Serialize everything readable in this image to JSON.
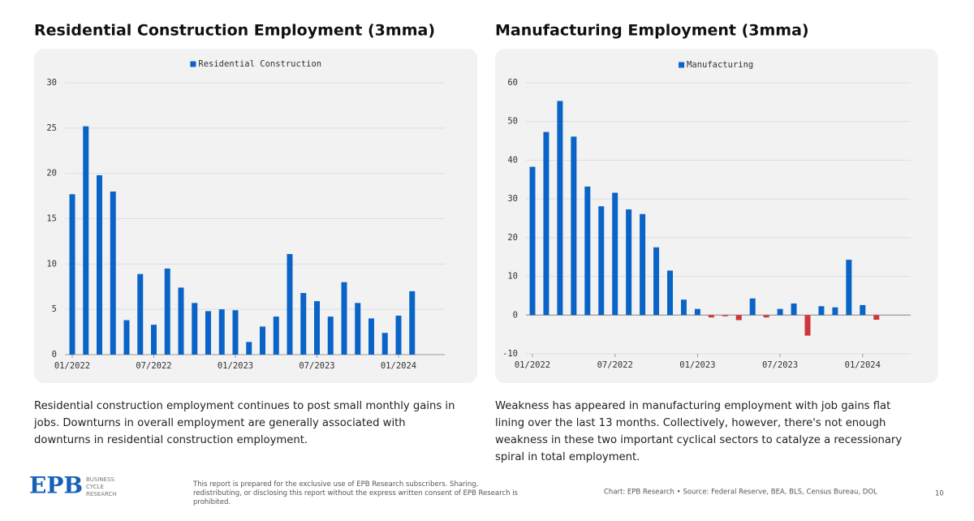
{
  "chart_data": [
    {
      "type": "bar",
      "title": "Residential Construction Employment (3mma)",
      "categories": [
        "01/2022",
        null,
        null,
        null,
        null,
        null,
        "07/2022",
        null,
        null,
        null,
        null,
        null,
        "01/2023",
        null,
        null,
        null,
        null,
        null,
        "07/2023",
        null,
        null,
        null,
        null,
        null,
        "01/2024",
        null
      ],
      "series": [
        {
          "name": "Residential Construction",
          "color": "#0a64c8",
          "values": [
            17.7,
            25.2,
            19.8,
            18.0,
            3.8,
            8.9,
            3.3,
            9.5,
            7.4,
            5.7,
            4.8,
            5.0,
            4.9,
            1.4,
            3.1,
            4.2,
            11.1,
            6.8,
            5.9,
            4.2,
            8.0,
            5.7,
            4.0,
            2.4,
            4.3,
            7.0
          ]
        }
      ],
      "ylim": [
        0,
        30
      ],
      "yticks": [
        0,
        5,
        10,
        15,
        20,
        25,
        30
      ],
      "grid": true
    },
    {
      "type": "bar",
      "title": "Manufacturing Employment (3mma)",
      "categories": [
        "01/2022",
        null,
        null,
        null,
        null,
        null,
        "07/2022",
        null,
        null,
        null,
        null,
        null,
        "01/2023",
        null,
        null,
        null,
        null,
        null,
        "07/2023",
        null,
        null,
        null,
        null,
        null,
        "01/2024",
        null
      ],
      "series": [
        {
          "name": "Manufacturing",
          "color": "#0a64c8",
          "negative_color": "#d0353b",
          "values": [
            38.3,
            47.3,
            55.3,
            46.1,
            33.2,
            28.1,
            31.6,
            27.3,
            26.1,
            17.5,
            11.5,
            4.0,
            1.6,
            -0.6,
            -0.3,
            -1.3,
            4.3,
            -0.6,
            1.6,
            3.0,
            -5.3,
            2.3,
            2.0,
            14.3,
            2.6,
            -1.2
          ]
        }
      ],
      "ylim": [
        -10,
        60
      ],
      "yticks": [
        -10,
        0,
        10,
        20,
        30,
        40,
        50,
        60
      ],
      "grid": true
    }
  ],
  "descriptions": [
    "Residential construction employment continues to post small monthly gains in jobs. Downturns in overall employment are generally associated with downturns in residential construction employment.",
    "Weakness has appeared in manufacturing employment with job gains flat lining over the last 13 months. Collectively, however, there's not enough weakness in these two important cyclical sectors to catalyze a recessionary spiral in total employment."
  ],
  "footer": {
    "logo": "EPB",
    "logo_lines": [
      "BUSINESS",
      "CYCLE",
      "RESEARCH"
    ],
    "disclaimer": "This report is prepared for the exclusive use of EPB Research subscribers. Sharing, redistributing, or disclosing this report without the express written consent of EPB Research is prohibited.",
    "source": "Chart: EPB Research  •  Source: Federal Reserve, BEA, BLS, Census Bureau, DOL",
    "page": "10"
  }
}
